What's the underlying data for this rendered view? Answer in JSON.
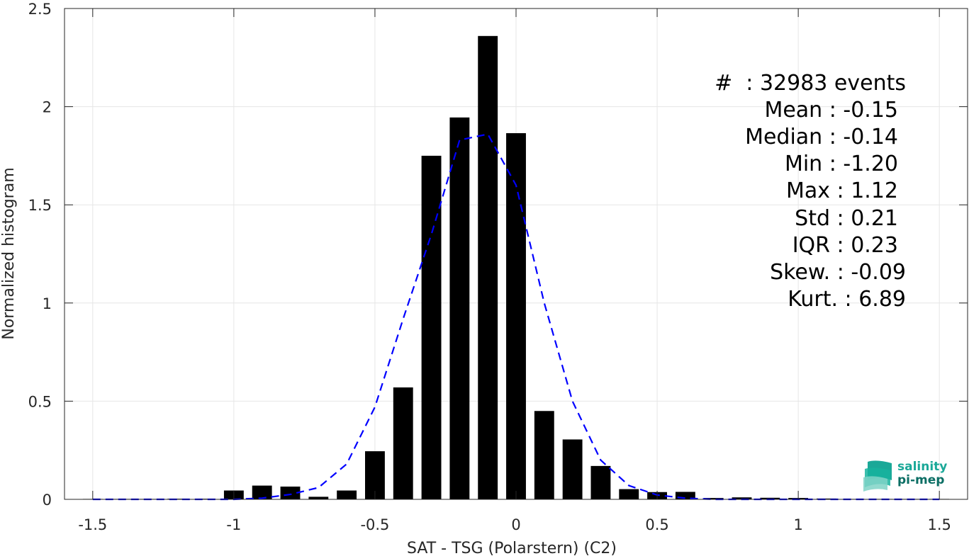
{
  "chart_data": {
    "type": "bar",
    "xlabel": "SAT - TSG (Polarstern) (C2)",
    "ylabel": "Normalized histogram",
    "xlim": [
      -1.6,
      1.6
    ],
    "ylim": [
      0,
      2.5
    ],
    "xticks": [
      "-1.5",
      "-1",
      "-0.5",
      "0",
      "0.5",
      "1",
      "1.5"
    ],
    "xtick_values": [
      -1.5,
      -1,
      -0.5,
      0,
      0.5,
      1,
      1.5
    ],
    "yticks": [
      "0",
      "0.5",
      "1",
      "1.5",
      "2",
      "2.5"
    ],
    "ytick_values": [
      0,
      0.5,
      1,
      1.5,
      2,
      2.5
    ],
    "grid": true,
    "bar_color": "#000000",
    "fit_color": "#0000ff",
    "bins": [
      {
        "x": -1.5,
        "y": 0.0
      },
      {
        "x": -1.4,
        "y": 0.0
      },
      {
        "x": -1.3,
        "y": 0.0
      },
      {
        "x": -1.2,
        "y": 0.003
      },
      {
        "x": -1.1,
        "y": 0.003
      },
      {
        "x": -1.0,
        "y": 0.045
      },
      {
        "x": -0.9,
        "y": 0.07
      },
      {
        "x": -0.8,
        "y": 0.065
      },
      {
        "x": -0.7,
        "y": 0.013
      },
      {
        "x": -0.6,
        "y": 0.045
      },
      {
        "x": -0.5,
        "y": 0.245
      },
      {
        "x": -0.4,
        "y": 0.57
      },
      {
        "x": -0.3,
        "y": 1.75
      },
      {
        "x": -0.2,
        "y": 1.945
      },
      {
        "x": -0.1,
        "y": 2.36
      },
      {
        "x": 0.0,
        "y": 1.865
      },
      {
        "x": 0.1,
        "y": 0.45
      },
      {
        "x": 0.2,
        "y": 0.305
      },
      {
        "x": 0.3,
        "y": 0.17
      },
      {
        "x": 0.4,
        "y": 0.052
      },
      {
        "x": 0.5,
        "y": 0.037
      },
      {
        "x": 0.6,
        "y": 0.038
      },
      {
        "x": 0.7,
        "y": 0.007
      },
      {
        "x": 0.8,
        "y": 0.01
      },
      {
        "x": 0.9,
        "y": 0.008
      },
      {
        "x": 1.0,
        "y": 0.007
      },
      {
        "x": 1.1,
        "y": 0.004
      },
      {
        "x": 1.2,
        "y": 0.0
      },
      {
        "x": 1.3,
        "y": 0.0
      },
      {
        "x": 1.4,
        "y": 0.0
      },
      {
        "x": 1.5,
        "y": 0.0
      }
    ],
    "fit": {
      "style": "dashed",
      "x": [
        -1.5,
        -1.4,
        -1.3,
        -1.2,
        -1.1,
        -1.0,
        -0.9,
        -0.8,
        -0.7,
        -0.6,
        -0.5,
        -0.4,
        -0.3,
        -0.2,
        -0.1,
        0.0,
        0.1,
        0.2,
        0.3,
        0.4,
        0.5,
        0.6,
        0.7,
        0.8,
        0.9,
        1.0,
        1.1,
        1.2,
        1.3,
        1.4,
        1.5
      ],
      "y": [
        0.0,
        0.0,
        0.0,
        0.0,
        0.0,
        0.0,
        0.006,
        0.025,
        0.06,
        0.18,
        0.47,
        0.92,
        1.35,
        1.83,
        1.86,
        1.6,
        1.0,
        0.5,
        0.2,
        0.07,
        0.022,
        0.006,
        0.0,
        0.0,
        0.0,
        0.0,
        0.0,
        0.0,
        0.0,
        0.0,
        0.0
      ]
    }
  },
  "stats": {
    "count": "#  : 32983 events",
    "mean": "Mean : -0.15",
    "median": "Median : -0.14",
    "min": "Min : -1.20",
    "max": "Max : 1.12",
    "std": "Std : 0.21",
    "iqr": "IQR : 0.23",
    "skew": "Skew. : -0.09",
    "kurt": "Kurt. : 6.89"
  },
  "logo": {
    "line1": "salinity",
    "line2": "pi-mep",
    "color1": "#1aa898",
    "color2": "#0b6e64"
  }
}
